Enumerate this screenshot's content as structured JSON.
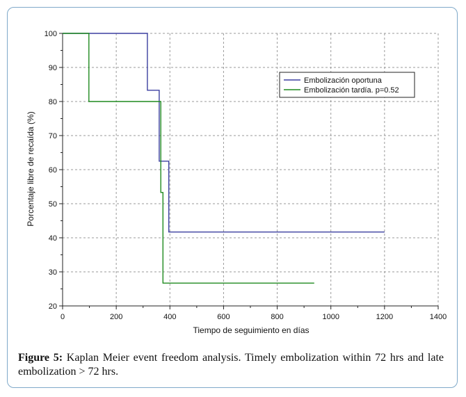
{
  "chart_data": {
    "type": "line",
    "step": true,
    "title": "",
    "xlabel": "Tiempo de seguimiento en días",
    "ylabel": "Porcentaje libre de recaída (%)",
    "xlim": [
      0,
      1400
    ],
    "ylim": [
      20,
      100
    ],
    "xticks": [
      0,
      200,
      400,
      600,
      800,
      1000,
      1200,
      1400
    ],
    "yticks": [
      20,
      30,
      40,
      50,
      60,
      70,
      80,
      90,
      100
    ],
    "grid": true,
    "legend_position": "top-right",
    "series": [
      {
        "name": "Embolización oportuna",
        "color": "#3b3fa0",
        "x": [
          0,
          316,
          316,
          360,
          360,
          396,
          396,
          1200
        ],
        "y": [
          100,
          100,
          83.3,
          83.3,
          62.5,
          62.5,
          41.7,
          41.7
        ]
      },
      {
        "name": "Embolización tardía. p=0.52",
        "color": "#1f8a1f",
        "x": [
          0,
          98,
          98,
          366,
          366,
          374,
          374,
          938
        ],
        "y": [
          100,
          100,
          80,
          80,
          53.3,
          53.3,
          26.7,
          26.7
        ]
      }
    ]
  },
  "caption": {
    "label": "Figure 5:",
    "text": " Kaplan Meier event freedom analysis. Timely embolization within 72 hrs and late embolization > 72 hrs."
  }
}
